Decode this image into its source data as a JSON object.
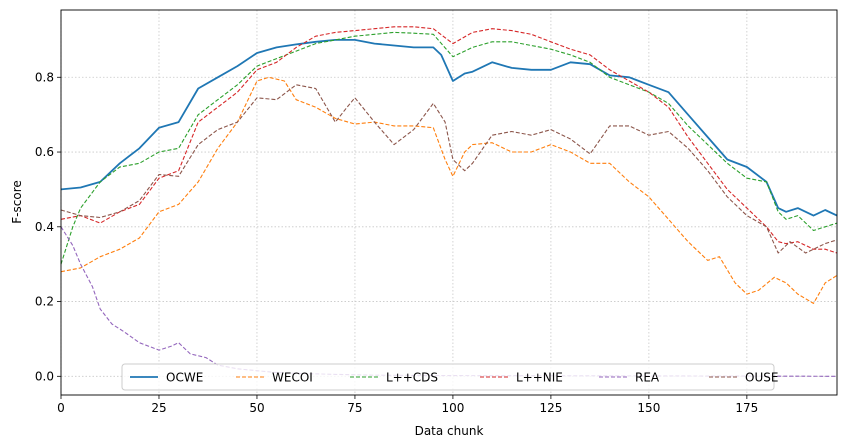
{
  "chart_data": {
    "type": "line",
    "xlabel": "Data chunk",
    "ylabel": "F-score",
    "xlim": [
      0,
      198
    ],
    "ylim": [
      -0.05,
      0.98
    ],
    "xticks": [
      0,
      25,
      50,
      75,
      100,
      125,
      150,
      175
    ],
    "yticks": [
      0.0,
      0.2,
      0.4,
      0.6,
      0.8
    ],
    "xtick_labels": [
      "0",
      "25",
      "50",
      "75",
      "100",
      "125",
      "150",
      "175"
    ],
    "ytick_labels": [
      "0.0",
      "0.2",
      "0.4",
      "0.6",
      "0.8"
    ],
    "grid": true,
    "legend_position": "bottom-center",
    "legend_columns": 6,
    "series": [
      {
        "name": "OCWE",
        "color": "#1f77b4",
        "dash": "solid",
        "points": [
          [
            0,
            0.5
          ],
          [
            5,
            0.505
          ],
          [
            10,
            0.52
          ],
          [
            15,
            0.57
          ],
          [
            20,
            0.61
          ],
          [
            25,
            0.665
          ],
          [
            30,
            0.68
          ],
          [
            35,
            0.77
          ],
          [
            40,
            0.8
          ],
          [
            45,
            0.83
          ],
          [
            50,
            0.865
          ],
          [
            55,
            0.88
          ],
          [
            60,
            0.888
          ],
          [
            65,
            0.895
          ],
          [
            70,
            0.9
          ],
          [
            75,
            0.9
          ],
          [
            80,
            0.89
          ],
          [
            85,
            0.885
          ],
          [
            90,
            0.88
          ],
          [
            95,
            0.88
          ],
          [
            97,
            0.86
          ],
          [
            100,
            0.79
          ],
          [
            103,
            0.81
          ],
          [
            105,
            0.815
          ],
          [
            110,
            0.84
          ],
          [
            115,
            0.825
          ],
          [
            120,
            0.82
          ],
          [
            125,
            0.82
          ],
          [
            130,
            0.84
          ],
          [
            135,
            0.835
          ],
          [
            140,
            0.805
          ],
          [
            145,
            0.8
          ],
          [
            150,
            0.78
          ],
          [
            155,
            0.76
          ],
          [
            160,
            0.7
          ],
          [
            165,
            0.64
          ],
          [
            170,
            0.58
          ],
          [
            175,
            0.56
          ],
          [
            180,
            0.52
          ],
          [
            183,
            0.45
          ],
          [
            185,
            0.44
          ],
          [
            188,
            0.45
          ],
          [
            192,
            0.43
          ],
          [
            195,
            0.445
          ],
          [
            198,
            0.43
          ]
        ]
      },
      {
        "name": "WECOI",
        "color": "#ff7f0e",
        "dash": "dashed",
        "points": [
          [
            0,
            0.28
          ],
          [
            5,
            0.29
          ],
          [
            10,
            0.32
          ],
          [
            15,
            0.34
          ],
          [
            20,
            0.37
          ],
          [
            25,
            0.44
          ],
          [
            30,
            0.46
          ],
          [
            35,
            0.52
          ],
          [
            40,
            0.61
          ],
          [
            45,
            0.68
          ],
          [
            50,
            0.79
          ],
          [
            53,
            0.8
          ],
          [
            57,
            0.79
          ],
          [
            60,
            0.74
          ],
          [
            65,
            0.72
          ],
          [
            70,
            0.69
          ],
          [
            75,
            0.675
          ],
          [
            80,
            0.68
          ],
          [
            85,
            0.67
          ],
          [
            90,
            0.67
          ],
          [
            95,
            0.665
          ],
          [
            98,
            0.58
          ],
          [
            100,
            0.535
          ],
          [
            103,
            0.6
          ],
          [
            105,
            0.62
          ],
          [
            110,
            0.625
          ],
          [
            115,
            0.6
          ],
          [
            120,
            0.6
          ],
          [
            125,
            0.62
          ],
          [
            130,
            0.6
          ],
          [
            135,
            0.57
          ],
          [
            140,
            0.57
          ],
          [
            145,
            0.52
          ],
          [
            150,
            0.48
          ],
          [
            155,
            0.42
          ],
          [
            160,
            0.36
          ],
          [
            165,
            0.31
          ],
          [
            168,
            0.32
          ],
          [
            172,
            0.25
          ],
          [
            175,
            0.22
          ],
          [
            178,
            0.23
          ],
          [
            182,
            0.265
          ],
          [
            185,
            0.25
          ],
          [
            188,
            0.22
          ],
          [
            192,
            0.195
          ],
          [
            195,
            0.25
          ],
          [
            198,
            0.27
          ]
        ]
      },
      {
        "name": "L++CDS",
        "color": "#2ca02c",
        "dash": "dashed",
        "points": [
          [
            0,
            0.3
          ],
          [
            3,
            0.4
          ],
          [
            5,
            0.45
          ],
          [
            10,
            0.52
          ],
          [
            15,
            0.56
          ],
          [
            20,
            0.57
          ],
          [
            25,
            0.6
          ],
          [
            30,
            0.61
          ],
          [
            35,
            0.7
          ],
          [
            40,
            0.74
          ],
          [
            45,
            0.78
          ],
          [
            50,
            0.83
          ],
          [
            55,
            0.85
          ],
          [
            60,
            0.87
          ],
          [
            65,
            0.89
          ],
          [
            70,
            0.9
          ],
          [
            75,
            0.91
          ],
          [
            80,
            0.915
          ],
          [
            85,
            0.92
          ],
          [
            90,
            0.918
          ],
          [
            95,
            0.915
          ],
          [
            100,
            0.855
          ],
          [
            105,
            0.88
          ],
          [
            110,
            0.895
          ],
          [
            115,
            0.895
          ],
          [
            120,
            0.885
          ],
          [
            125,
            0.875
          ],
          [
            130,
            0.86
          ],
          [
            135,
            0.84
          ],
          [
            140,
            0.8
          ],
          [
            145,
            0.78
          ],
          [
            150,
            0.76
          ],
          [
            155,
            0.73
          ],
          [
            160,
            0.67
          ],
          [
            165,
            0.62
          ],
          [
            170,
            0.57
          ],
          [
            175,
            0.53
          ],
          [
            180,
            0.52
          ],
          [
            183,
            0.44
          ],
          [
            185,
            0.42
          ],
          [
            188,
            0.43
          ],
          [
            192,
            0.39
          ],
          [
            195,
            0.4
          ],
          [
            198,
            0.41
          ]
        ]
      },
      {
        "name": "L++NIE",
        "color": "#d62728",
        "dash": "dashed",
        "points": [
          [
            0,
            0.42
          ],
          [
            5,
            0.43
          ],
          [
            10,
            0.41
          ],
          [
            15,
            0.44
          ],
          [
            20,
            0.46
          ],
          [
            25,
            0.53
          ],
          [
            30,
            0.55
          ],
          [
            35,
            0.68
          ],
          [
            40,
            0.72
          ],
          [
            45,
            0.76
          ],
          [
            50,
            0.82
          ],
          [
            55,
            0.84
          ],
          [
            60,
            0.88
          ],
          [
            65,
            0.91
          ],
          [
            70,
            0.92
          ],
          [
            75,
            0.925
          ],
          [
            80,
            0.93
          ],
          [
            85,
            0.935
          ],
          [
            90,
            0.935
          ],
          [
            95,
            0.93
          ],
          [
            100,
            0.89
          ],
          [
            105,
            0.92
          ],
          [
            110,
            0.93
          ],
          [
            115,
            0.925
          ],
          [
            120,
            0.915
          ],
          [
            125,
            0.895
          ],
          [
            130,
            0.875
          ],
          [
            135,
            0.86
          ],
          [
            140,
            0.82
          ],
          [
            145,
            0.79
          ],
          [
            150,
            0.76
          ],
          [
            155,
            0.72
          ],
          [
            160,
            0.64
          ],
          [
            165,
            0.57
          ],
          [
            170,
            0.5
          ],
          [
            175,
            0.45
          ],
          [
            180,
            0.4
          ],
          [
            183,
            0.36
          ],
          [
            185,
            0.355
          ],
          [
            188,
            0.36
          ],
          [
            192,
            0.34
          ],
          [
            195,
            0.34
          ],
          [
            198,
            0.33
          ]
        ]
      },
      {
        "name": "REA",
        "color": "#9467bd",
        "dash": "dashed",
        "points": [
          [
            0,
            0.4
          ],
          [
            3,
            0.35
          ],
          [
            5,
            0.3
          ],
          [
            8,
            0.24
          ],
          [
            10,
            0.18
          ],
          [
            13,
            0.14
          ],
          [
            16,
            0.12
          ],
          [
            20,
            0.09
          ],
          [
            25,
            0.07
          ],
          [
            28,
            0.08
          ],
          [
            30,
            0.09
          ],
          [
            33,
            0.06
          ],
          [
            37,
            0.05
          ],
          [
            40,
            0.03
          ],
          [
            45,
            0.02
          ],
          [
            50,
            0.015
          ],
          [
            55,
            0.01
          ],
          [
            60,
            0.008
          ],
          [
            70,
            0.005
          ],
          [
            80,
            0.003
          ],
          [
            100,
            0.002
          ],
          [
            150,
            0.001
          ],
          [
            198,
            0.0
          ]
        ]
      },
      {
        "name": "OUSE",
        "color": "#8c564b",
        "dash": "dashed",
        "points": [
          [
            0,
            0.445
          ],
          [
            5,
            0.43
          ],
          [
            10,
            0.425
          ],
          [
            15,
            0.44
          ],
          [
            20,
            0.47
          ],
          [
            25,
            0.54
          ],
          [
            30,
            0.535
          ],
          [
            35,
            0.62
          ],
          [
            40,
            0.66
          ],
          [
            45,
            0.68
          ],
          [
            50,
            0.745
          ],
          [
            55,
            0.74
          ],
          [
            60,
            0.78
          ],
          [
            65,
            0.77
          ],
          [
            70,
            0.68
          ],
          [
            73,
            0.72
          ],
          [
            75,
            0.745
          ],
          [
            80,
            0.68
          ],
          [
            85,
            0.62
          ],
          [
            90,
            0.66
          ],
          [
            95,
            0.73
          ],
          [
            98,
            0.68
          ],
          [
            100,
            0.58
          ],
          [
            103,
            0.55
          ],
          [
            105,
            0.57
          ],
          [
            110,
            0.645
          ],
          [
            115,
            0.655
          ],
          [
            120,
            0.645
          ],
          [
            125,
            0.66
          ],
          [
            130,
            0.635
          ],
          [
            135,
            0.595
          ],
          [
            140,
            0.67
          ],
          [
            145,
            0.67
          ],
          [
            150,
            0.645
          ],
          [
            155,
            0.655
          ],
          [
            160,
            0.61
          ],
          [
            165,
            0.55
          ],
          [
            170,
            0.48
          ],
          [
            175,
            0.43
          ],
          [
            180,
            0.4
          ],
          [
            183,
            0.33
          ],
          [
            186,
            0.36
          ],
          [
            190,
            0.33
          ],
          [
            195,
            0.355
          ],
          [
            198,
            0.365
          ]
        ]
      }
    ]
  }
}
